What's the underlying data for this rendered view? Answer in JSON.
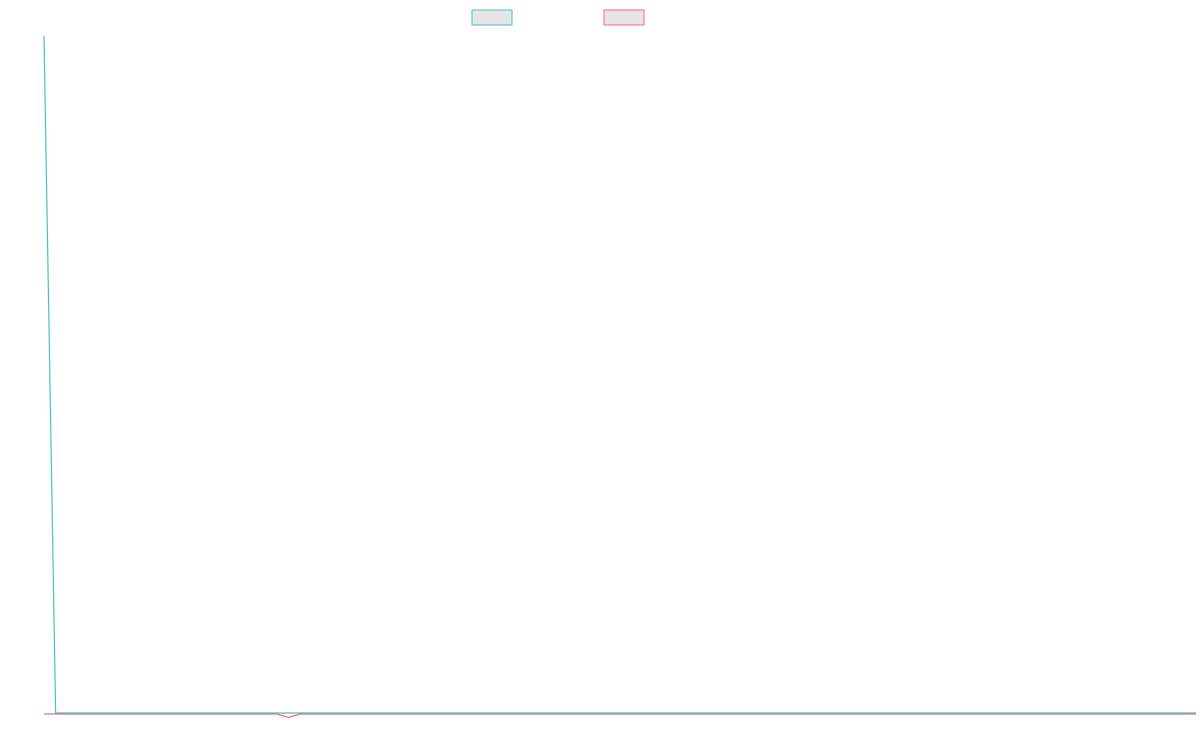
{
  "chart_data": {
    "type": "line",
    "title": "",
    "xlabel": "",
    "ylabel": "",
    "grid": false,
    "legend_position": "top-center",
    "x_points": 100,
    "ylim": [
      0,
      1
    ],
    "series": [
      {
        "color": "#4bc0c0",
        "fill": "#e6e6e6",
        "values": [
          1,
          0.0015,
          0.0015,
          0.0015,
          0.0015,
          0.0015,
          0.0015,
          0.0015,
          0.0015,
          0.0015,
          0.0015,
          0.0015,
          0.0015,
          0.0015,
          0.0015,
          0.0015,
          0.0015,
          0.0015,
          0.0015,
          0.0015,
          0.0015,
          0.0015,
          0.0015,
          0.0015,
          0.0015,
          0.0015,
          0.0015,
          0.0015,
          0.0015,
          0.0015,
          0.0015,
          0.0015,
          0.0015,
          0.0015,
          0.0015,
          0.0015,
          0.0015,
          0.0015,
          0.0015,
          0.0015,
          0.0015,
          0.0015,
          0.0015,
          0.0015,
          0.0015,
          0.0015,
          0.0015,
          0.0015,
          0.0015,
          0.0015,
          0.0015,
          0.0015,
          0.0015,
          0.0015,
          0.0015,
          0.0015,
          0.0015,
          0.0015,
          0.0015,
          0.0015,
          0.0015,
          0.0015,
          0.0015,
          0.0015,
          0.0015,
          0.0015,
          0.0015,
          0.0015,
          0.0015,
          0.0015,
          0.0015,
          0.0015,
          0.0015,
          0.0015,
          0.0015,
          0.0015,
          0.0015,
          0.0015,
          0.0015,
          0.0015,
          0.0015,
          0.0015,
          0.0015,
          0.0015,
          0.0015,
          0.0015,
          0.0015,
          0.0015,
          0.0015,
          0.0015,
          0.0015,
          0.0015,
          0.0015,
          0.0015,
          0.0015,
          0.0015,
          0.0015,
          0.0015,
          0.0015,
          0.0015
        ]
      },
      {
        "color": "#ff6384",
        "fill": "#e6e6e6",
        "values": [
          0,
          0,
          0,
          0,
          0,
          0,
          0,
          0,
          0,
          0,
          0,
          0,
          0,
          0,
          0,
          0,
          0,
          0,
          0,
          0,
          0,
          -0.005,
          0,
          0,
          0,
          0,
          0,
          0,
          0,
          0,
          0,
          0,
          0,
          0,
          0,
          0,
          0,
          0,
          0,
          0,
          0,
          0,
          0,
          0,
          0,
          0,
          0,
          0,
          0,
          0,
          0,
          0,
          0,
          0,
          0,
          0,
          0,
          0,
          0,
          0,
          0,
          0,
          0,
          0,
          0,
          0,
          0,
          0,
          0,
          0,
          0,
          0,
          0,
          0,
          0,
          0,
          0,
          0,
          0,
          0,
          0,
          0,
          0,
          0,
          0,
          0,
          0,
          0,
          0,
          0,
          0,
          0,
          0,
          0,
          0,
          0,
          0,
          0,
          0,
          0
        ]
      }
    ]
  }
}
